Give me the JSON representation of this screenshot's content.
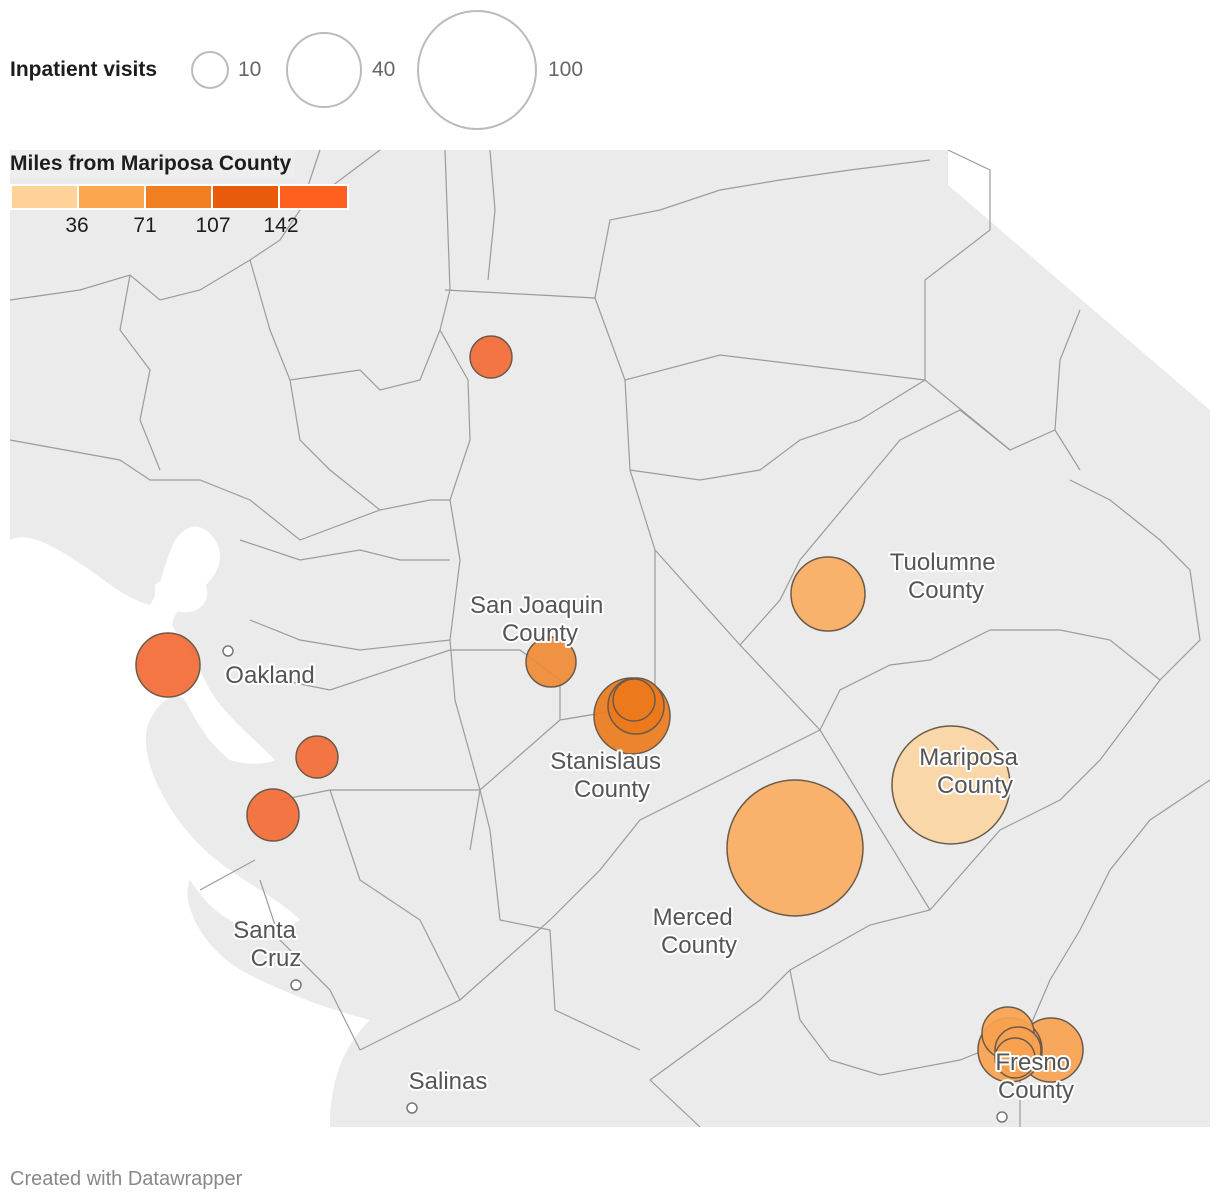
{
  "size_legend": {
    "title": "Inpatient visits",
    "entries": [
      {
        "label": "10",
        "value": 10
      },
      {
        "label": "40",
        "value": 40
      },
      {
        "label": "100",
        "value": 100
      }
    ]
  },
  "color_legend": {
    "title": "Miles from Mariposa County",
    "colors": [
      "#fed298",
      "#fca650",
      "#f07f22",
      "#e85a0c",
      "#ff5f1f"
    ],
    "ticks": [
      "36",
      "71",
      "107",
      "142"
    ]
  },
  "colors": {
    "land": "#ebebeb",
    "water": "#ffffff",
    "border": "#9b9b9b",
    "bubble_stroke": "#6b5a4a"
  },
  "map_labels": [
    {
      "id": "tuolumne",
      "lines": [
        "Tuolumne",
        "County"
      ]
    },
    {
      "id": "san-joaquin",
      "lines": [
        "San Joaquin",
        "County"
      ]
    },
    {
      "id": "oakland",
      "lines": [
        "Oakland"
      ]
    },
    {
      "id": "stanislaus",
      "lines": [
        "Stanislaus",
        "County"
      ]
    },
    {
      "id": "mariposa",
      "lines": [
        "Mariposa",
        "County"
      ]
    },
    {
      "id": "merced",
      "lines": [
        "Merced",
        "County"
      ]
    },
    {
      "id": "santa-cruz",
      "lines": [
        "Santa",
        "Cruz"
      ]
    },
    {
      "id": "salinas",
      "lines": [
        "Salinas"
      ]
    },
    {
      "id": "fresno",
      "lines": [
        "Fresno",
        "County"
      ]
    }
  ],
  "footer": "Created with Datawrapper"
}
